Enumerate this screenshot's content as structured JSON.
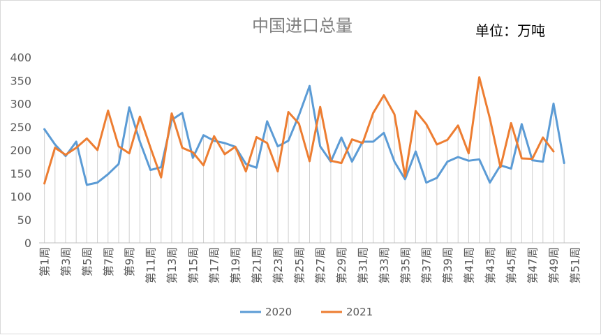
{
  "chart_data": {
    "type": "line",
    "title": "中国进口总量",
    "unit_label": "单位：万吨",
    "xlabel": "",
    "ylabel": "",
    "ylim": [
      0,
      400
    ],
    "yticks": [
      0,
      50,
      100,
      150,
      200,
      250,
      300,
      350,
      400
    ],
    "grid": "vertical drop lines",
    "legend_position": "bottom",
    "categories": [
      "第1周",
      "第2周",
      "第3周",
      "第4周",
      "第5周",
      "第6周",
      "第7周",
      "第8周",
      "第9周",
      "第10周",
      "第11周",
      "第12周",
      "第13周",
      "第14周",
      "第15周",
      "第16周",
      "第17周",
      "第18周",
      "第19周",
      "第20周",
      "第21周",
      "第22周",
      "第23周",
      "第24周",
      "第25周",
      "第26周",
      "第27周",
      "第28周",
      "第29周",
      "第30周",
      "第31周",
      "第32周",
      "第33周",
      "第34周",
      "第35周",
      "第36周",
      "第37周",
      "第38周",
      "第39周",
      "第40周",
      "第41周",
      "第42周",
      "第43周",
      "第44周",
      "第45周",
      "第46周",
      "第47周",
      "第48周",
      "第49周",
      "第50周",
      "第51周"
    ],
    "x_tick_labels": [
      "第1周",
      "第3周",
      "第5周",
      "第7周",
      "第9周",
      "第11周",
      "第13周",
      "第15周",
      "第17周",
      "第19周",
      "第21周",
      "第23周",
      "第25周",
      "第27周",
      "第29周",
      "第31周",
      "第33周",
      "第35周",
      "第37周",
      "第39周",
      "第41周",
      "第43周",
      "第45周",
      "第47周",
      "第49周",
      "第51周"
    ],
    "series": [
      {
        "name": "2020",
        "color": "#5B9BD5",
        "values": [
          245,
          212,
          187,
          218,
          125,
          130,
          148,
          170,
          292,
          218,
          157,
          163,
          265,
          280,
          183,
          232,
          220,
          215,
          207,
          170,
          162,
          262,
          208,
          220,
          275,
          338,
          208,
          175,
          227,
          175,
          218,
          218,
          237,
          175,
          137,
          197,
          130,
          140,
          175,
          185,
          177,
          180,
          130,
          167,
          160,
          256,
          178,
          175,
          300,
          172,
          null
        ]
      },
      {
        "name": "2021",
        "color": "#ED7D31",
        "values": [
          128,
          205,
          190,
          205,
          225,
          200,
          285,
          208,
          193,
          272,
          205,
          141,
          279,
          205,
          195,
          167,
          230,
          191,
          207,
          154,
          228,
          215,
          154,
          282,
          257,
          176,
          293,
          177,
          172,
          223,
          215,
          280,
          318,
          277,
          143,
          284,
          256,
          212,
          222,
          253,
          193,
          357,
          268,
          163,
          258,
          182,
          181,
          227,
          197,
          null,
          null
        ]
      }
    ]
  }
}
